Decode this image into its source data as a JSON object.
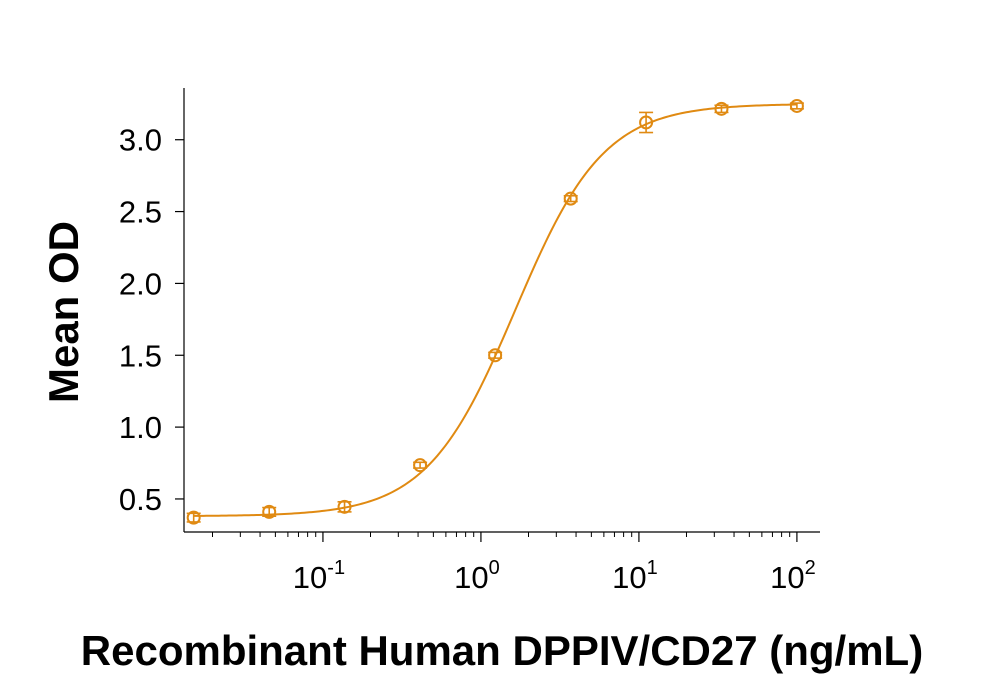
{
  "chart_data": {
    "type": "scatter",
    "xlabel": "Recombinant Human DPPIV/CD27 (ng/mL)",
    "ylabel": "Mean OD",
    "xscale": "log",
    "xlim": [
      0.0132,
      140
    ],
    "ylim": [
      0.27,
      3.36
    ],
    "yticks": [
      0.5,
      1.0,
      1.5,
      2.0,
      2.5,
      3.0
    ],
    "ytick_labels": [
      "0.5",
      "1.0",
      "1.5",
      "2.0",
      "2.5",
      "3.0"
    ],
    "xticks_major": [
      {
        "value": 0.1,
        "base": "10",
        "exp": "-1"
      },
      {
        "value": 1,
        "base": "10",
        "exp": "0"
      },
      {
        "value": 10,
        "base": "10",
        "exp": "1"
      },
      {
        "value": 100,
        "base": "10",
        "exp": "2"
      }
    ],
    "grid": false,
    "legend": "none",
    "color": "#E08A12",
    "points": [
      {
        "x": 0.0152,
        "y": 0.37,
        "err": 0.03
      },
      {
        "x": 0.0457,
        "y": 0.41,
        "err": 0.03
      },
      {
        "x": 0.137,
        "y": 0.445,
        "err": 0.035
      },
      {
        "x": 0.412,
        "y": 0.735,
        "err": 0.02
      },
      {
        "x": 1.23,
        "y": 1.5,
        "err": 0.02
      },
      {
        "x": 3.7,
        "y": 2.59,
        "err": 0.02
      },
      {
        "x": 11.1,
        "y": 3.12,
        "err": 0.07
      },
      {
        "x": 33.3,
        "y": 3.215,
        "err": 0.025
      },
      {
        "x": 100,
        "y": 3.235,
        "err": 0.02
      }
    ],
    "fit": {
      "model": "4PL",
      "bottom": 0.38,
      "top": 3.25,
      "ec50": 1.65,
      "hill": 1.55
    }
  }
}
